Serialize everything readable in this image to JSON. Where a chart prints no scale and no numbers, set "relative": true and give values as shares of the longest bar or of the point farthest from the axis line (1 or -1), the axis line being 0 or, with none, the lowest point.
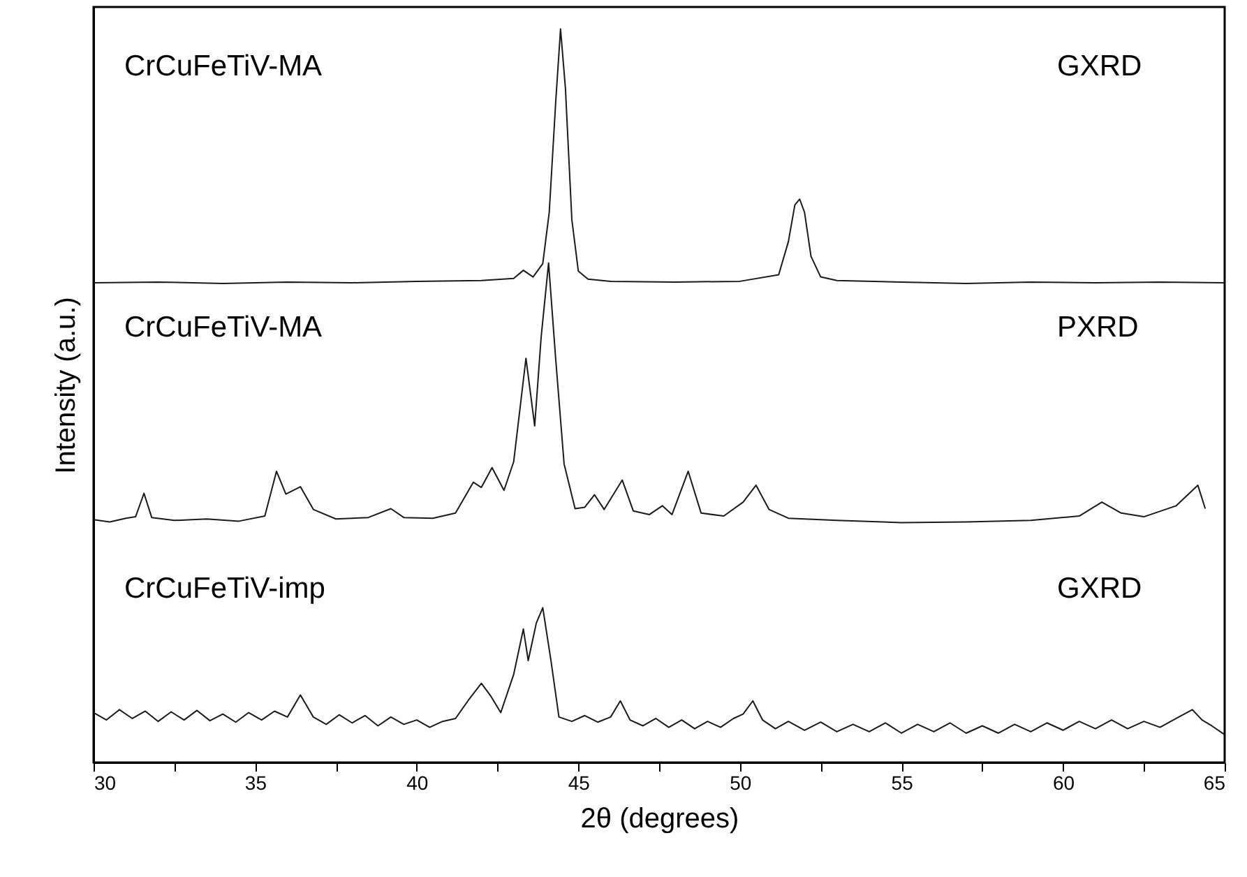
{
  "chart_data": {
    "type": "line",
    "relative": true,
    "xlabel": "2θ (degrees)",
    "ylabel": "Intensity (a.u.)",
    "tick_labels": "x",
    "xlim": [
      30,
      65
    ],
    "xticks": [
      30,
      {
        "value": 32.5,
        "label": null
      },
      35,
      {
        "value": 37.5,
        "label": null
      },
      40,
      {
        "value": 42.5,
        "label": null
      },
      45,
      {
        "value": 47.5,
        "label": null
      },
      50,
      {
        "value": 52.5,
        "label": null
      },
      55,
      {
        "value": 57.5,
        "label": null
      },
      60,
      {
        "value": 62.5,
        "label": null
      },
      65
    ],
    "series": [
      {
        "color": "#1a1a1a",
        "x": [
          30,
          32,
          34,
          36,
          38,
          40,
          42,
          43,
          43.3,
          43.6,
          43.9,
          44.1,
          44.3,
          44.45,
          44.6,
          44.8,
          45.0,
          45.3,
          46,
          48,
          50,
          51.2,
          51.5,
          51.7,
          51.85,
          52.0,
          52.2,
          52.5,
          53,
          55,
          57,
          59,
          61,
          63,
          65
        ],
        "values": [
          0.654,
          0.655,
          0.653,
          0.655,
          0.654,
          0.656,
          0.657,
          0.66,
          0.671,
          0.662,
          0.68,
          0.75,
          0.9,
          1,
          0.92,
          0.74,
          0.67,
          0.659,
          0.656,
          0.655,
          0.656,
          0.665,
          0.71,
          0.76,
          0.768,
          0.75,
          0.69,
          0.662,
          0.657,
          0.655,
          0.653,
          0.655,
          0.654,
          0.655,
          0.654
        ]
      },
      {
        "color": "#1a1a1a",
        "x": [
          30,
          30.5,
          31,
          31.3,
          31.56,
          31.8,
          32.5,
          33.5,
          34.5,
          35.3,
          35.66,
          35.95,
          36.4,
          36.8,
          37.5,
          38.5,
          39.2,
          39.6,
          40.5,
          41.2,
          41.75,
          42.0,
          42.33,
          42.7,
          43.0,
          43.38,
          43.65,
          43.85,
          44.08,
          44.3,
          44.56,
          44.9,
          45.2,
          45.5,
          45.8,
          46.36,
          46.7,
          47.2,
          47.6,
          47.9,
          48.4,
          48.8,
          49.5,
          50.1,
          50.5,
          50.9,
          51.5,
          53,
          55,
          57,
          59,
          60.5,
          61.2,
          61.8,
          62.5,
          63.5,
          64.17,
          64.4
        ],
        "values": [
          0.331,
          0.328,
          0.333,
          0.335,
          0.367,
          0.334,
          0.33,
          0.332,
          0.329,
          0.336,
          0.397,
          0.366,
          0.376,
          0.345,
          0.332,
          0.334,
          0.346,
          0.334,
          0.333,
          0.34,
          0.382,
          0.375,
          0.402,
          0.371,
          0.41,
          0.551,
          0.459,
          0.58,
          0.681,
          0.55,
          0.407,
          0.346,
          0.348,
          0.365,
          0.345,
          0.385,
          0.343,
          0.338,
          0.35,
          0.338,
          0.397,
          0.34,
          0.336,
          0.355,
          0.378,
          0.345,
          0.333,
          0.33,
          0.327,
          0.328,
          0.33,
          0.336,
          0.355,
          0.34,
          0.335,
          0.35,
          0.378,
          0.346
        ]
      },
      {
        "color": "#1a1a1a",
        "x": [
          30,
          30.4,
          30.8,
          31.2,
          31.6,
          32,
          32.4,
          32.8,
          33.2,
          33.6,
          34,
          34.4,
          34.8,
          35.2,
          35.6,
          36,
          36.4,
          36.8,
          37.2,
          37.6,
          38,
          38.4,
          38.8,
          39.2,
          39.6,
          40,
          40.4,
          40.8,
          41.2,
          41.6,
          42.0,
          42.3,
          42.6,
          43.0,
          43.3,
          43.45,
          43.7,
          43.9,
          44.15,
          44.4,
          44.8,
          45.2,
          45.6,
          46.0,
          46.3,
          46.6,
          47,
          47.4,
          47.8,
          48.2,
          48.6,
          49,
          49.4,
          49.8,
          50.1,
          50.4,
          50.7,
          51.1,
          51.5,
          52,
          52.5,
          53,
          53.5,
          54,
          54.5,
          55,
          55.5,
          56,
          56.5,
          57,
          57.5,
          58,
          58.5,
          59,
          59.5,
          60,
          60.5,
          61,
          61.5,
          62,
          62.5,
          63,
          63.5,
          64,
          64.3,
          64.6,
          65
        ],
        "values": [
          0.068,
          0.058,
          0.072,
          0.06,
          0.07,
          0.056,
          0.069,
          0.058,
          0.071,
          0.057,
          0.066,
          0.055,
          0.068,
          0.058,
          0.07,
          0.062,
          0.092,
          0.062,
          0.052,
          0.065,
          0.054,
          0.064,
          0.05,
          0.062,
          0.052,
          0.058,
          0.048,
          0.056,
          0.06,
          0.085,
          0.108,
          0.09,
          0.068,
          0.12,
          0.182,
          0.139,
          0.19,
          0.211,
          0.14,
          0.062,
          0.056,
          0.064,
          0.055,
          0.062,
          0.084,
          0.058,
          0.05,
          0.06,
          0.048,
          0.058,
          0.046,
          0.056,
          0.048,
          0.06,
          0.066,
          0.084,
          0.058,
          0.046,
          0.056,
          0.044,
          0.055,
          0.042,
          0.052,
          0.042,
          0.054,
          0.04,
          0.052,
          0.042,
          0.054,
          0.04,
          0.05,
          0.04,
          0.052,
          0.042,
          0.054,
          0.044,
          0.056,
          0.046,
          0.058,
          0.046,
          0.056,
          0.048,
          0.06,
          0.072,
          0.058,
          0.05,
          0.038
        ]
      }
    ],
    "annotations": [
      "CrCuFeTiV-MA",
      "GXRD",
      "CrCuFeTiV-MA",
      "PXRD",
      "CrCuFeTiV-imp",
      "GXRD"
    ]
  }
}
